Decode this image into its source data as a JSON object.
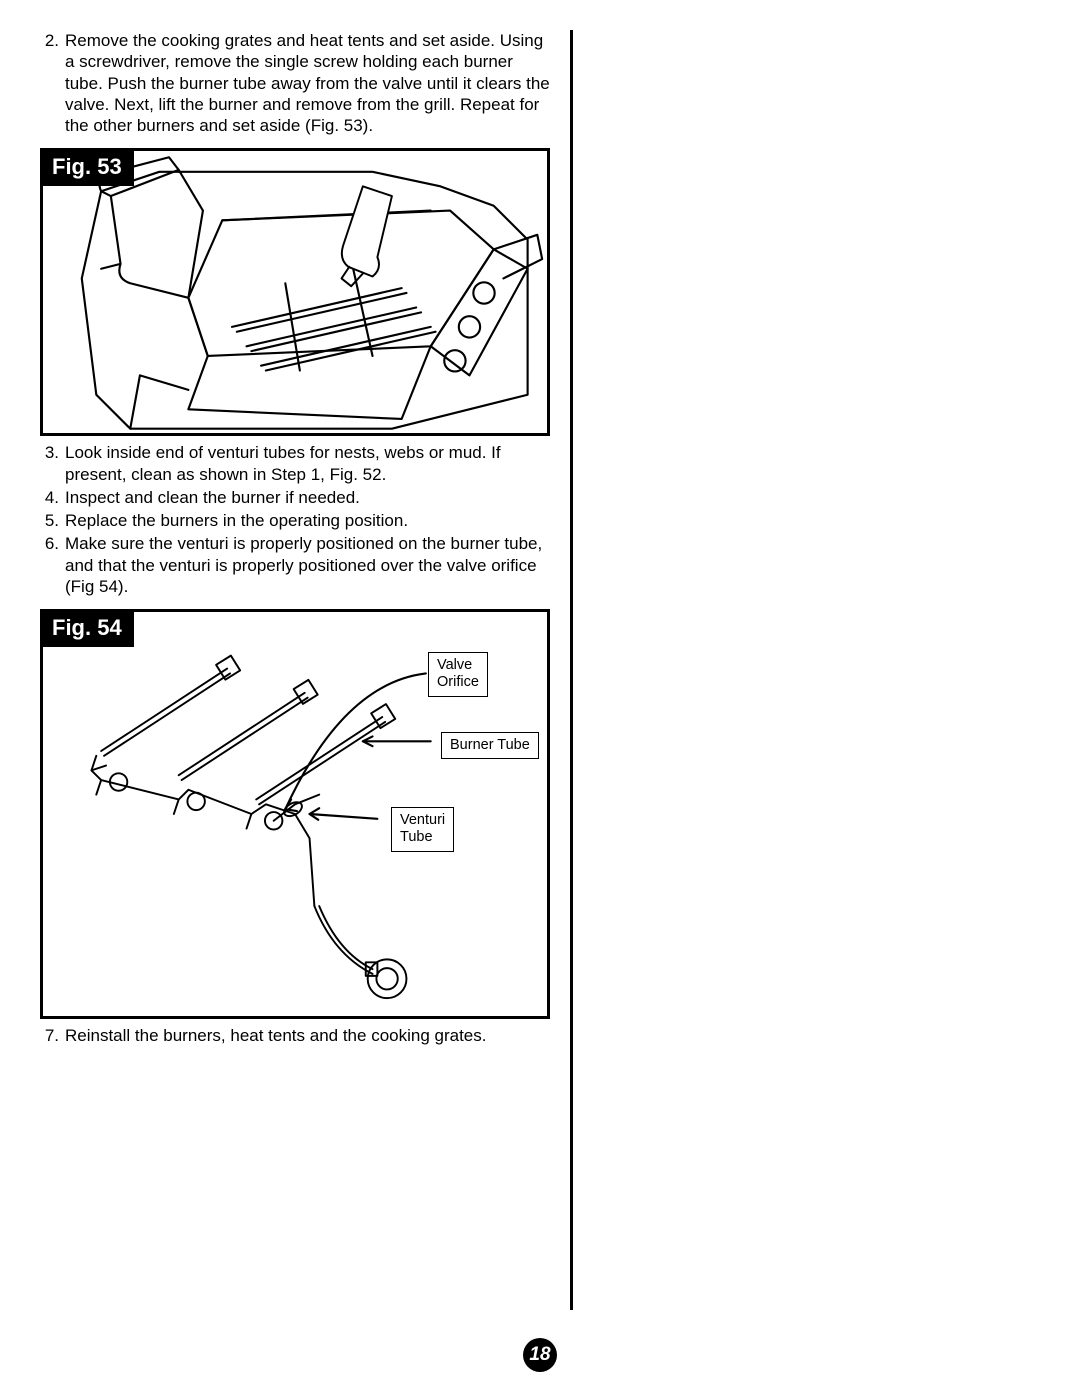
{
  "steps_top": [
    {
      "n": "2.",
      "t": "Remove the cooking grates and heat tents and set aside. Using a screwdriver, remove the single screw holding each burner tube.  Push the burner tube away from the valve until it clears the valve.  Next, lift the burner and remove from the grill. Repeat for the other burners and set aside (Fig. 53)."
    }
  ],
  "fig53_label": "Fig. 53",
  "steps_mid": [
    {
      "n": "3.",
      "t": "Look inside end of venturi tubes for nests, webs or mud.  If present, clean as shown in Step 1, Fig. 52."
    },
    {
      "n": "4.",
      "t": "Inspect and clean the burner if needed."
    },
    {
      "n": "5.",
      "t": "Replace the burners in the operating position."
    },
    {
      "n": "6.",
      "t": "Make sure the venturi is properly positioned on the burner tube, and that the venturi is properly positioned over the valve orifice (Fig 54)."
    }
  ],
  "fig54_label": "Fig. 54",
  "callouts": {
    "valve_orifice": "Valve\nOrifice",
    "burner_tube": "Burner Tube",
    "venturi_tube": "Venturi\nTube"
  },
  "steps_bottom": [
    {
      "n": "7.",
      "t": "Reinstall the burners, heat tents and the cooking grates."
    }
  ],
  "page_number": "18",
  "colors": {
    "stroke": "#000000",
    "bg": "#ffffff"
  }
}
